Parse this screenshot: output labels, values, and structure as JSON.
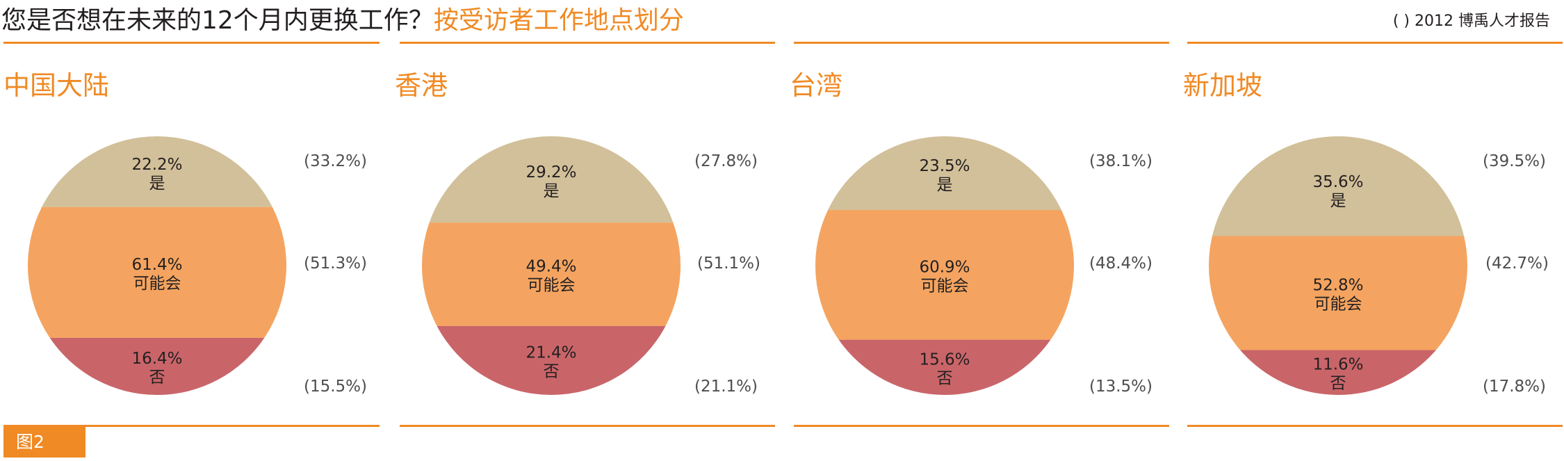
{
  "header": {
    "title_main": "您是否想在未来的12个月内更换工作？",
    "title_accent": "按受访者工作地点划分",
    "source": "(      ) 2012 博禹人才报告"
  },
  "figure_label": "图2",
  "colors": {
    "yes": "#d2c09a",
    "maybe": "#f4a460",
    "no": "#c96569",
    "accent": "#f08a24"
  },
  "chart_data": [
    {
      "type": "pie",
      "title": "中国大陆",
      "categories": [
        "是",
        "可能会",
        "否"
      ],
      "values": [
        22.2,
        61.4,
        16.4
      ],
      "value_labels": [
        "22.2%",
        "61.4%",
        "16.4%"
      ],
      "comparison_labels": [
        "(33.2%)",
        "(51.3%)",
        "(15.5%)"
      ]
    },
    {
      "type": "pie",
      "title": "香港",
      "categories": [
        "是",
        "可能会",
        "否"
      ],
      "values": [
        29.2,
        49.4,
        21.4
      ],
      "value_labels": [
        "29.2%",
        "49.4%",
        "21.4%"
      ],
      "comparison_labels": [
        "(27.8%)",
        "(51.1%)",
        "(21.1%)"
      ]
    },
    {
      "type": "pie",
      "title": "台湾",
      "categories": [
        "是",
        "可能会",
        "否"
      ],
      "values": [
        23.5,
        60.9,
        15.6
      ],
      "value_labels": [
        "23.5%",
        "60.9%",
        "15.6%"
      ],
      "comparison_labels": [
        "(38.1%)",
        "(48.4%)",
        "(13.5%)"
      ]
    },
    {
      "type": "pie",
      "title": "新加坡",
      "categories": [
        "是",
        "可能会",
        "否"
      ],
      "values": [
        35.6,
        52.8,
        11.6
      ],
      "value_labels": [
        "35.6%",
        "52.8%",
        "11.6%"
      ],
      "comparison_labels": [
        "(39.5%)",
        "(42.7%)",
        "(17.8%)"
      ]
    }
  ]
}
